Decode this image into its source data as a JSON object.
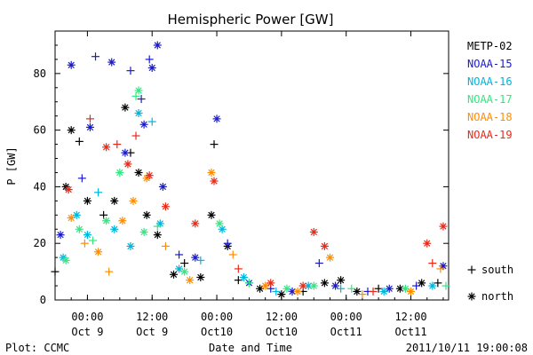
{
  "chart_data": {
    "type": "scatter",
    "title": "Hemispheric Power [GW]",
    "xlabel": "Date and Time",
    "ylabel": "P [GW]",
    "xlim": [
      "2011-10-08 18:00",
      "2011-10-11 19:00"
    ],
    "ylim": [
      0,
      95
    ],
    "yticks": [
      "0",
      "20",
      "40",
      "60",
      "80"
    ],
    "xticks": [
      {
        "time": "2011-10-09 00:00",
        "hour": "00:00",
        "day": "Oct 9"
      },
      {
        "time": "2011-10-09 12:00",
        "hour": "12:00",
        "day": "Oct 9"
      },
      {
        "time": "2011-10-10 00:00",
        "hour": "00:00",
        "day": "Oct10"
      },
      {
        "time": "2011-10-10 12:00",
        "hour": "12:00",
        "day": "Oct10"
      },
      {
        "time": "2011-10-11 00:00",
        "hour": "00:00",
        "day": "Oct11"
      },
      {
        "time": "2011-10-11 12:00",
        "hour": "12:00",
        "day": "Oct11"
      }
    ],
    "legend_position": "right",
    "marker_legend": [
      {
        "symbol": "+",
        "label": "south"
      },
      {
        "symbol": "*",
        "label": "north"
      }
    ],
    "series": [
      {
        "name": "METP-02",
        "color": "#000000",
        "points": [
          {
            "x": "2011-10-08 18:00",
            "y": 10,
            "m": "+"
          },
          {
            "x": "2011-10-08 20:00",
            "y": 40,
            "m": "*"
          },
          {
            "x": "2011-10-08 21:00",
            "y": 60,
            "m": "*"
          },
          {
            "x": "2011-10-08 22:30",
            "y": 56,
            "m": "+"
          },
          {
            "x": "2011-10-09 00:00",
            "y": 35,
            "m": "*"
          },
          {
            "x": "2011-10-09 03:00",
            "y": 30,
            "m": "+"
          },
          {
            "x": "2011-10-09 05:00",
            "y": 35,
            "m": "*"
          },
          {
            "x": "2011-10-09 07:00",
            "y": 68,
            "m": "*"
          },
          {
            "x": "2011-10-09 08:00",
            "y": 52,
            "m": "+"
          },
          {
            "x": "2011-10-09 09:30",
            "y": 45,
            "m": "*"
          },
          {
            "x": "2011-10-09 11:00",
            "y": 30,
            "m": "*"
          },
          {
            "x": "2011-10-09 13:00",
            "y": 23,
            "m": "*"
          },
          {
            "x": "2011-10-09 16:00",
            "y": 9,
            "m": "*"
          },
          {
            "x": "2011-10-09 18:00",
            "y": 13,
            "m": "+"
          },
          {
            "x": "2011-10-09 21:00",
            "y": 8,
            "m": "*"
          },
          {
            "x": "2011-10-09 23:00",
            "y": 30,
            "m": "*"
          },
          {
            "x": "2011-10-09 23:30",
            "y": 55,
            "m": "+"
          },
          {
            "x": "2011-10-10 02:00",
            "y": 19,
            "m": "*"
          },
          {
            "x": "2011-10-10 04:00",
            "y": 7,
            "m": "+"
          },
          {
            "x": "2011-10-10 08:00",
            "y": 4,
            "m": "*"
          },
          {
            "x": "2011-10-10 12:00",
            "y": 2,
            "m": "*"
          },
          {
            "x": "2011-10-10 16:00",
            "y": 3,
            "m": "+"
          },
          {
            "x": "2011-10-10 20:00",
            "y": 6,
            "m": "*"
          },
          {
            "x": "2011-10-10 23:00",
            "y": 7,
            "m": "*"
          },
          {
            "x": "2011-10-11 02:00",
            "y": 3,
            "m": "*"
          },
          {
            "x": "2011-10-11 06:00",
            "y": 4,
            "m": "+"
          },
          {
            "x": "2011-10-11 10:00",
            "y": 4,
            "m": "*"
          },
          {
            "x": "2011-10-11 14:00",
            "y": 6,
            "m": "*"
          },
          {
            "x": "2011-10-11 17:00",
            "y": 6,
            "m": "+"
          }
        ]
      },
      {
        "name": "NOAA-15",
        "color": "#1a1acc",
        "points": [
          {
            "x": "2011-10-08 19:00",
            "y": 23,
            "m": "*"
          },
          {
            "x": "2011-10-08 21:00",
            "y": 83,
            "m": "*"
          },
          {
            "x": "2011-10-08 23:00",
            "y": 43,
            "m": "+"
          },
          {
            "x": "2011-10-09 00:30",
            "y": 61,
            "m": "*"
          },
          {
            "x": "2011-10-09 01:30",
            "y": 86,
            "m": "+"
          },
          {
            "x": "2011-10-09 04:30",
            "y": 84,
            "m": "*"
          },
          {
            "x": "2011-10-09 07:00",
            "y": 52,
            "m": "*"
          },
          {
            "x": "2011-10-09 08:00",
            "y": 81,
            "m": "+"
          },
          {
            "x": "2011-10-09 10:00",
            "y": 71,
            "m": "+"
          },
          {
            "x": "2011-10-09 10:30",
            "y": 62,
            "m": "*"
          },
          {
            "x": "2011-10-09 11:30",
            "y": 85,
            "m": "+"
          },
          {
            "x": "2011-10-09 12:00",
            "y": 82,
            "m": "*"
          },
          {
            "x": "2011-10-09 13:00",
            "y": 90,
            "m": "*"
          },
          {
            "x": "2011-10-09 14:00",
            "y": 40,
            "m": "*"
          },
          {
            "x": "2011-10-09 17:00",
            "y": 16,
            "m": "+"
          },
          {
            "x": "2011-10-09 20:00",
            "y": 15,
            "m": "*"
          },
          {
            "x": "2011-10-10 00:00",
            "y": 64,
            "m": "*"
          },
          {
            "x": "2011-10-10 02:00",
            "y": 20,
            "m": "+"
          },
          {
            "x": "2011-10-10 06:00",
            "y": 6,
            "m": "*"
          },
          {
            "x": "2011-10-10 10:00",
            "y": 4,
            "m": "+"
          },
          {
            "x": "2011-10-10 14:00",
            "y": 3,
            "m": "*"
          },
          {
            "x": "2011-10-10 19:00",
            "y": 13,
            "m": "+"
          },
          {
            "x": "2011-10-10 22:00",
            "y": 5,
            "m": "*"
          },
          {
            "x": "2011-10-11 04:00",
            "y": 3,
            "m": "+"
          },
          {
            "x": "2011-10-11 08:00",
            "y": 4,
            "m": "*"
          },
          {
            "x": "2011-10-11 13:00",
            "y": 5,
            "m": "+"
          },
          {
            "x": "2011-10-11 18:00",
            "y": 12,
            "m": "*"
          }
        ]
      },
      {
        "name": "NOAA-16",
        "color": "#00b4dc",
        "points": [
          {
            "x": "2011-10-08 19:30",
            "y": 15,
            "m": "*"
          },
          {
            "x": "2011-10-08 22:00",
            "y": 30,
            "m": "*"
          },
          {
            "x": "2011-10-09 00:00",
            "y": 23,
            "m": "*"
          },
          {
            "x": "2011-10-09 02:00",
            "y": 38,
            "m": "+"
          },
          {
            "x": "2011-10-09 05:00",
            "y": 25,
            "m": "*"
          },
          {
            "x": "2011-10-09 08:00",
            "y": 19,
            "m": "*"
          },
          {
            "x": "2011-10-09 09:30",
            "y": 66,
            "m": "*"
          },
          {
            "x": "2011-10-09 12:00",
            "y": 63,
            "m": "+"
          },
          {
            "x": "2011-10-09 13:30",
            "y": 27,
            "m": "*"
          },
          {
            "x": "2011-10-09 17:00",
            "y": 11,
            "m": "*"
          },
          {
            "x": "2011-10-09 21:00",
            "y": 14,
            "m": "+"
          },
          {
            "x": "2011-10-10 01:00",
            "y": 25,
            "m": "*"
          },
          {
            "x": "2011-10-10 05:00",
            "y": 8,
            "m": "*"
          },
          {
            "x": "2011-10-10 11:00",
            "y": 3,
            "m": "+"
          },
          {
            "x": "2011-10-10 17:00",
            "y": 5,
            "m": "*"
          },
          {
            "x": "2011-10-10 23:00",
            "y": 4,
            "m": "+"
          },
          {
            "x": "2011-10-11 07:00",
            "y": 3,
            "m": "*"
          },
          {
            "x": "2011-10-11 16:00",
            "y": 5,
            "m": "*"
          }
        ]
      },
      {
        "name": "NOAA-17",
        "color": "#33e680",
        "points": [
          {
            "x": "2011-10-08 20:00",
            "y": 14,
            "m": "*"
          },
          {
            "x": "2011-10-08 22:30",
            "y": 25,
            "m": "*"
          },
          {
            "x": "2011-10-09 01:00",
            "y": 21,
            "m": "+"
          },
          {
            "x": "2011-10-09 03:30",
            "y": 28,
            "m": "*"
          },
          {
            "x": "2011-10-09 06:00",
            "y": 45,
            "m": "*"
          },
          {
            "x": "2011-10-09 09:00",
            "y": 72,
            "m": "+"
          },
          {
            "x": "2011-10-09 09:30",
            "y": 74,
            "m": "*"
          },
          {
            "x": "2011-10-09 10:30",
            "y": 24,
            "m": "*"
          },
          {
            "x": "2011-10-09 13:00",
            "y": 26,
            "m": "+"
          },
          {
            "x": "2011-10-09 18:00",
            "y": 10,
            "m": "*"
          },
          {
            "x": "2011-10-10 00:30",
            "y": 27,
            "m": "*"
          },
          {
            "x": "2011-10-10 06:00",
            "y": 6,
            "m": "+"
          },
          {
            "x": "2011-10-10 13:00",
            "y": 4,
            "m": "*"
          },
          {
            "x": "2011-10-10 18:00",
            "y": 5,
            "m": "*"
          },
          {
            "x": "2011-10-11 01:00",
            "y": 4,
            "m": "+"
          },
          {
            "x": "2011-10-11 11:00",
            "y": 4,
            "m": "*"
          },
          {
            "x": "2011-10-11 18:30",
            "y": 5,
            "m": "+"
          }
        ]
      },
      {
        "name": "NOAA-18",
        "color": "#ff8c00",
        "points": [
          {
            "x": "2011-10-08 21:00",
            "y": 29,
            "m": "*"
          },
          {
            "x": "2011-10-08 23:30",
            "y": 20,
            "m": "+"
          },
          {
            "x": "2011-10-09 02:00",
            "y": 17,
            "m": "*"
          },
          {
            "x": "2011-10-09 04:00",
            "y": 10,
            "m": "+"
          },
          {
            "x": "2011-10-09 06:30",
            "y": 28,
            "m": "*"
          },
          {
            "x": "2011-10-09 08:30",
            "y": 35,
            "m": "*"
          },
          {
            "x": "2011-10-09 11:00",
            "y": 43,
            "m": "*"
          },
          {
            "x": "2011-10-09 14:30",
            "y": 19,
            "m": "+"
          },
          {
            "x": "2011-10-09 19:00",
            "y": 7,
            "m": "*"
          },
          {
            "x": "2011-10-09 23:00",
            "y": 45,
            "m": "*"
          },
          {
            "x": "2011-10-10 03:00",
            "y": 16,
            "m": "+"
          },
          {
            "x": "2011-10-10 09:00",
            "y": 5,
            "m": "*"
          },
          {
            "x": "2011-10-10 15:00",
            "y": 3,
            "m": "*"
          },
          {
            "x": "2011-10-10 21:00",
            "y": 15,
            "m": "*"
          },
          {
            "x": "2011-10-11 03:00",
            "y": 2,
            "m": "+"
          },
          {
            "x": "2011-10-11 12:00",
            "y": 3,
            "m": "*"
          },
          {
            "x": "2011-10-11 17:30",
            "y": 11,
            "m": "+"
          }
        ]
      },
      {
        "name": "NOAA-19",
        "color": "#e62a1a",
        "points": [
          {
            "x": "2011-10-08 20:30",
            "y": 39,
            "m": "*"
          },
          {
            "x": "2011-10-09 00:30",
            "y": 64,
            "m": "+"
          },
          {
            "x": "2011-10-09 03:30",
            "y": 54,
            "m": "*"
          },
          {
            "x": "2011-10-09 05:30",
            "y": 55,
            "m": "+"
          },
          {
            "x": "2011-10-09 07:30",
            "y": 48,
            "m": "*"
          },
          {
            "x": "2011-10-09 09:00",
            "y": 58,
            "m": "+"
          },
          {
            "x": "2011-10-09 11:30",
            "y": 44,
            "m": "*"
          },
          {
            "x": "2011-10-09 14:30",
            "y": 33,
            "m": "*"
          },
          {
            "x": "2011-10-09 20:00",
            "y": 27,
            "m": "*"
          },
          {
            "x": "2011-10-09 23:30",
            "y": 42,
            "m": "*"
          },
          {
            "x": "2011-10-10 04:00",
            "y": 11,
            "m": "+"
          },
          {
            "x": "2011-10-10 10:00",
            "y": 6,
            "m": "*"
          },
          {
            "x": "2011-10-10 16:00",
            "y": 5,
            "m": "*"
          },
          {
            "x": "2011-10-10 18:00",
            "y": 24,
            "m": "*"
          },
          {
            "x": "2011-10-10 20:00",
            "y": 19,
            "m": "*"
          },
          {
            "x": "2011-10-11 05:00",
            "y": 3,
            "m": "+"
          },
          {
            "x": "2011-10-11 15:00",
            "y": 20,
            "m": "*"
          },
          {
            "x": "2011-10-11 16:00",
            "y": 13,
            "m": "+"
          },
          {
            "x": "2011-10-11 18:00",
            "y": 26,
            "m": "*"
          }
        ]
      }
    ]
  },
  "footer": {
    "left": "Plot: CCMC",
    "right": "2011/10/11 19:00:08"
  }
}
